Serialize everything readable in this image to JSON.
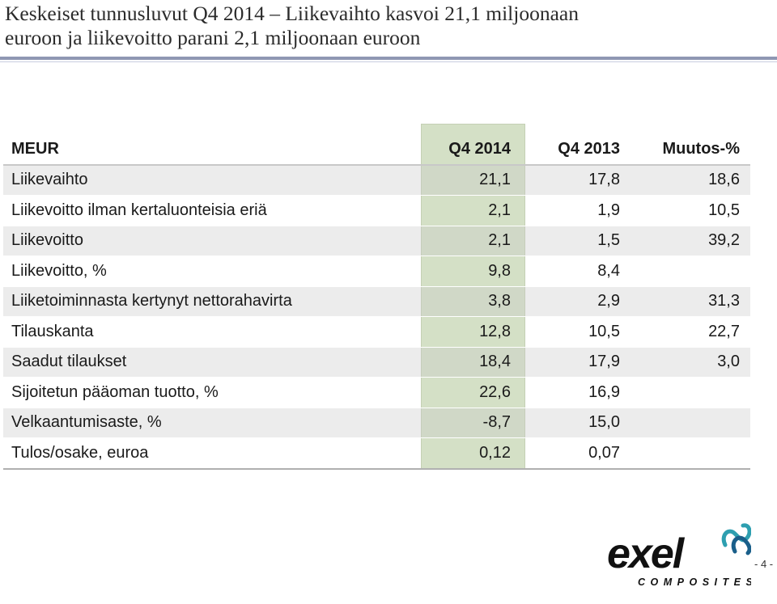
{
  "slide": {
    "title_line1": "Keskeiset tunnusluvut Q4 2014 – Liikevaihto kasvoi 21,1 miljoonaan",
    "title_line2": "euroon ja liikevoitto parani 2,1 miljoonaan euroon",
    "page_number": "- 4 -"
  },
  "table": {
    "headers": [
      "MEUR",
      "Q4 2014",
      "Q4 2013",
      "Muutos-%"
    ],
    "rows": [
      [
        "Liikevaihto",
        "21,1",
        "17,8",
        "18,6"
      ],
      [
        "Liikevoitto ilman kertaluonteisia eriä",
        "2,1",
        "1,9",
        "10,5"
      ],
      [
        "Liikevoitto",
        "2,1",
        "1,5",
        "39,2"
      ],
      [
        "Liikevoitto, %",
        "9,8",
        "8,4",
        ""
      ],
      [
        "Liiketoiminnasta kertynyt nettorahavirta",
        "3,8",
        "2,9",
        "31,3"
      ],
      [
        "Tilauskanta",
        "12,8",
        "10,5",
        "22,7"
      ],
      [
        "Saadut tilaukset",
        "18,4",
        "17,9",
        "3,0"
      ],
      [
        "Sijoitetun pääoman tuotto, %",
        "22,6",
        "16,9",
        ""
      ],
      [
        "Velkaantumisaste, %",
        "-8,7",
        "15,0",
        ""
      ],
      [
        "Tulos/osake, euroa",
        "0,12",
        "0,07",
        ""
      ]
    ],
    "highlight_color": "#d4e0c6"
  },
  "logo": {
    "wordmark": "exel",
    "subtitle": "COMPOSITES",
    "mark_colors": [
      "#1a5f8a",
      "#2e9fb0"
    ]
  },
  "colors": {
    "title_rule": "#8f97b3"
  }
}
